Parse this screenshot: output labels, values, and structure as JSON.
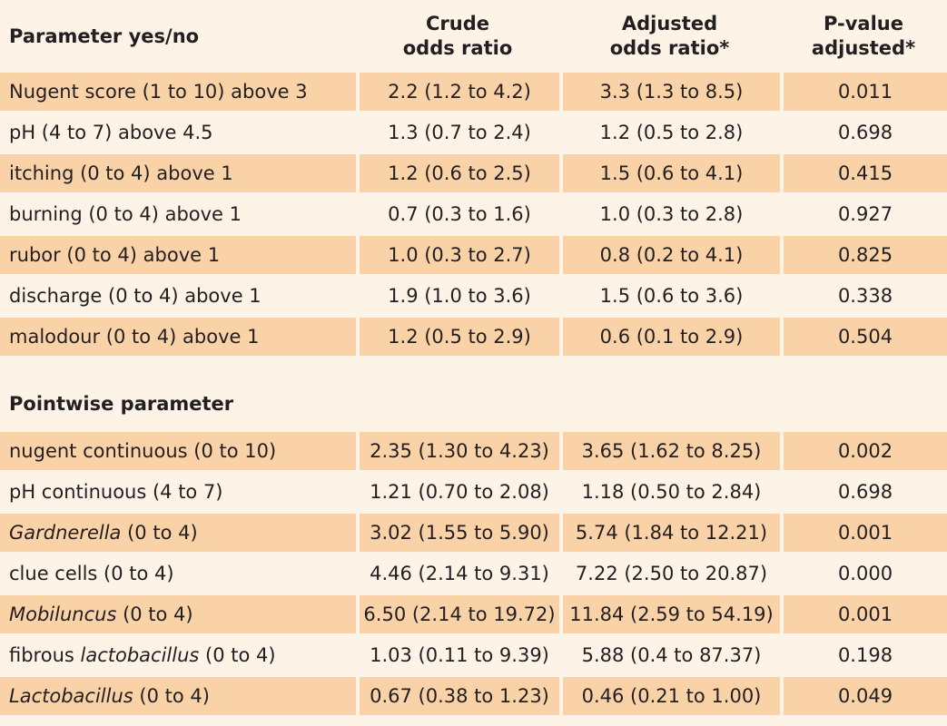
{
  "header": {
    "col1": "Parameter yes/no",
    "col2_l1": "Crude",
    "col2_l2": "odds ratio",
    "col3_l1": "Adjusted",
    "col3_l2": "odds ratio*",
    "col4_l1": "P-value",
    "col4_l2": "adjusted*"
  },
  "section1": [
    {
      "param": "Nugent score (1 to 10) above 3",
      "crude": "2.2 (1.2 to 4.2)",
      "adjusted": "3.3 (1.3 to 8.5)",
      "p": "0.011"
    },
    {
      "param": "pH (4 to 7) above 4.5",
      "crude": "1.3 (0.7 to 2.4)",
      "adjusted": "1.2 (0.5 to 2.8)",
      "p": "0.698"
    },
    {
      "param": "itching (0 to 4) above 1",
      "crude": "1.2 (0.6 to 2.5)",
      "adjusted": "1.5 (0.6 to 4.1)",
      "p": "0.415"
    },
    {
      "param": "burning (0 to 4) above 1",
      "crude": "0.7 (0.3 to 1.6)",
      "adjusted": "1.0 (0.3 to 2.8)",
      "p": "0.927"
    },
    {
      "param": "rubor (0 to 4) above 1",
      "crude": "1.0 (0.3 to 2.7)",
      "adjusted": "0.8 (0.2 to 4.1)",
      "p": "0.825"
    },
    {
      "param": "discharge (0 to 4) above 1",
      "crude": "1.9 (1.0 to 3.6)",
      "adjusted": "1.5 (0.6 to 3.6)",
      "p": "0.338"
    },
    {
      "param": "malodour (0 to 4) above 1",
      "crude": "1.2 (0.5 to 2.9)",
      "adjusted": "0.6 (0.1 to 2.9)",
      "p": "0.504"
    }
  ],
  "section2_title": "Pointwise parameter",
  "section2": [
    {
      "param_pre": "nugent continuous (0 to 10)",
      "param_it": "",
      "param_post": "",
      "crude": "2.35 (1.30 to 4.23)",
      "adjusted": "3.65 (1.62 to 8.25)",
      "p": "0.002"
    },
    {
      "param_pre": "pH continuous (4 to 7)",
      "param_it": "",
      "param_post": "",
      "crude": "1.21 (0.70 to 2.08)",
      "adjusted": "1.18 (0.50 to 2.84)",
      "p": "0.698"
    },
    {
      "param_pre": "",
      "param_it": "Gardnerella",
      "param_post": " (0 to 4)",
      "crude": "3.02 (1.55 to 5.90)",
      "adjusted": "5.74 (1.84 to 12.21)",
      "p": "0.001"
    },
    {
      "param_pre": "clue cells (0 to 4)",
      "param_it": "",
      "param_post": "",
      "crude": "4.46 (2.14 to 9.31)",
      "adjusted": "7.22 (2.50 to 20.87)",
      "p": "0.000"
    },
    {
      "param_pre": "",
      "param_it": "Mobiluncus",
      "param_post": " (0 to 4)",
      "crude": "6.50 (2.14 to 19.72)",
      "adjusted": "11.84 (2.59 to 54.19)",
      "p": "0.001"
    },
    {
      "param_pre": "fibrous ",
      "param_it": "lactobacillus",
      "param_post": " (0 to 4)",
      "crude": "1.03 (0.11 to 9.39)",
      "adjusted": "5.88 (0.4 to 87.37)",
      "p": "0.198"
    },
    {
      "param_pre": "",
      "param_it": "Lactobacillus",
      "param_post": " (0 to 4)",
      "crude": "0.67 (0.38 to 1.23)",
      "adjusted": "0.46 (0.21 to 1.00)",
      "p": "0.049"
    }
  ],
  "colors": {
    "stripe": "#fad2a7",
    "background": "#fdf3e6"
  }
}
